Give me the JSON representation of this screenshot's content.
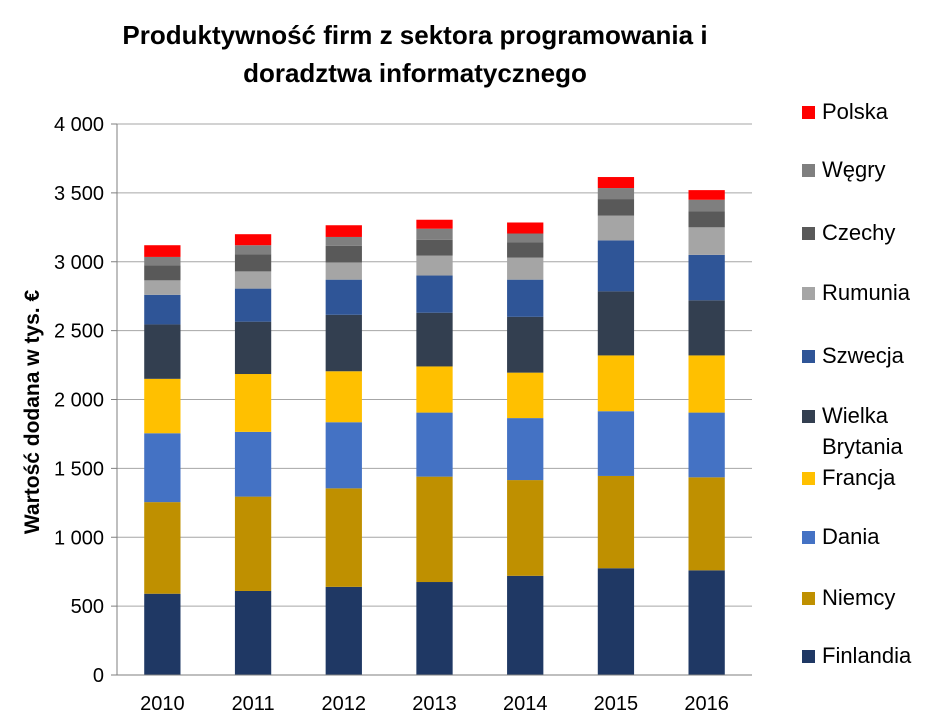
{
  "chart_data": {
    "type": "bar",
    "stacked": true,
    "title": "Produktywność firm z sektora programowania i doradztwa informatycznego",
    "ylabel": "Wartość dodana w tys. €",
    "xlabel": "",
    "ylim": [
      0,
      4000
    ],
    "yticks": [
      0,
      500,
      1000,
      1500,
      2000,
      2500,
      3000,
      3500,
      4000
    ],
    "ytick_labels": [
      "0",
      "500",
      "1 000",
      "1 500",
      "2 000",
      "2 500",
      "3 000",
      "3 500",
      "4 000"
    ],
    "grid": "horizontal",
    "legend_position": "right",
    "categories": [
      "2010",
      "2011",
      "2012",
      "2013",
      "2014",
      "2015",
      "2016"
    ],
    "series": [
      {
        "name": "Finlandia",
        "color": "#1f3864",
        "values": [
          590,
          610,
          640,
          675,
          720,
          775,
          760
        ]
      },
      {
        "name": "Niemcy",
        "color": "#bf9000",
        "values": [
          665,
          685,
          715,
          765,
          695,
          670,
          675
        ]
      },
      {
        "name": "Dania",
        "color": "#4472c4",
        "values": [
          500,
          470,
          480,
          465,
          450,
          470,
          470
        ]
      },
      {
        "name": "Francja",
        "color": "#ffc000",
        "values": [
          395,
          420,
          370,
          335,
          330,
          405,
          415
        ]
      },
      {
        "name": "Wielka Brytania",
        "color": "#333f50",
        "values": [
          395,
          380,
          410,
          390,
          405,
          465,
          400
        ]
      },
      {
        "name": "Szwecja",
        "color": "#2f5597",
        "values": [
          215,
          240,
          255,
          270,
          270,
          370,
          330
        ]
      },
      {
        "name": "Rumunia",
        "color": "#a5a5a5",
        "values": [
          105,
          125,
          125,
          145,
          160,
          180,
          200
        ]
      },
      {
        "name": "Czechy",
        "color": "#595959",
        "values": [
          110,
          125,
          120,
          115,
          110,
          120,
          115
        ]
      },
      {
        "name": "Węgry",
        "color": "#7f7f7f",
        "values": [
          60,
          65,
          65,
          80,
          65,
          80,
          85
        ]
      },
      {
        "name": "Polska",
        "color": "#ff0000",
        "values": [
          85,
          80,
          85,
          65,
          80,
          80,
          70
        ]
      }
    ]
  }
}
